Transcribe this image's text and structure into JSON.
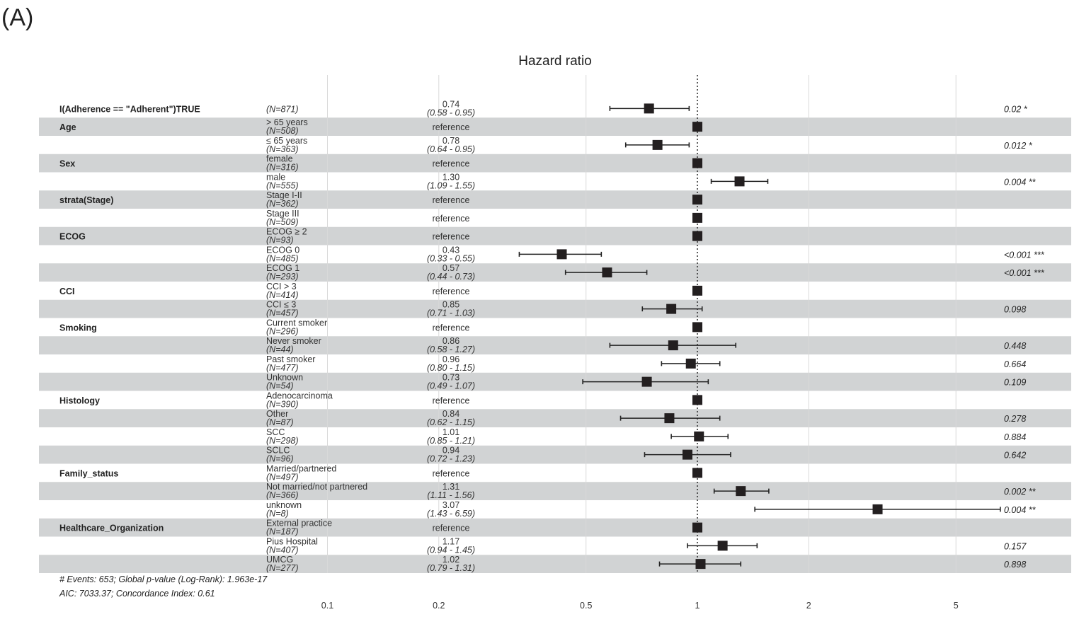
{
  "panel_label": "(A)",
  "footer": {
    "line1": "# Events: 653; Global p-value (Log-Rank): 1.963e-17",
    "line2": "AIC: 7033.37; Concordance Index: 0.61"
  },
  "chart_data": {
    "type": "forest",
    "title": "Hazard ratio",
    "x_scale": "log",
    "xlim": [
      0.1,
      6.6
    ],
    "x_ticks": [
      {
        "value": 0.1,
        "label": "0.1"
      },
      {
        "value": 0.2,
        "label": "0.2"
      },
      {
        "value": 0.5,
        "label": "0.5"
      },
      {
        "value": 1,
        "label": "1"
      },
      {
        "value": 2,
        "label": "2"
      },
      {
        "value": 5,
        "label": "5"
      }
    ],
    "reference_line": 1,
    "rows": [
      {
        "variable": "I(Adherence == \"Adherent\")TRUE",
        "level": "",
        "n": "(N=871)",
        "hr": 0.74,
        "lower": 0.58,
        "upper": 0.95,
        "hr_label": "0.74",
        "ci_label": "(0.58 - 0.95)",
        "p": "0.02 *"
      },
      {
        "variable": "Age",
        "level": "> 65 years",
        "n": "(N=508)",
        "hr": 1,
        "lower": null,
        "upper": null,
        "hr_label": "reference",
        "ci_label": "",
        "p": ""
      },
      {
        "variable": "",
        "level": "≤ 65 years",
        "n": "(N=363)",
        "hr": 0.78,
        "lower": 0.64,
        "upper": 0.95,
        "hr_label": "0.78",
        "ci_label": "(0.64 - 0.95)",
        "p": "0.012 *"
      },
      {
        "variable": "Sex",
        "level": "female",
        "n": "(N=316)",
        "hr": 1,
        "lower": null,
        "upper": null,
        "hr_label": "reference",
        "ci_label": "",
        "p": ""
      },
      {
        "variable": "",
        "level": "male",
        "n": "(N=555)",
        "hr": 1.3,
        "lower": 1.09,
        "upper": 1.55,
        "hr_label": "1.30",
        "ci_label": "(1.09 - 1.55)",
        "p": "0.004 **"
      },
      {
        "variable": "strata(Stage)",
        "level": "Stage I-II",
        "n": "(N=362)",
        "hr": 1,
        "lower": null,
        "upper": null,
        "hr_label": "reference",
        "ci_label": "",
        "p": ""
      },
      {
        "variable": "",
        "level": "Stage III",
        "n": "(N=509)",
        "hr": 1,
        "lower": null,
        "upper": null,
        "hr_label": "reference",
        "ci_label": "",
        "p": ""
      },
      {
        "variable": "ECOG",
        "level": "ECOG ≥ 2",
        "n": "(N=93)",
        "hr": 1,
        "lower": null,
        "upper": null,
        "hr_label": "reference",
        "ci_label": "",
        "p": ""
      },
      {
        "variable": "",
        "level": "ECOG 0",
        "n": "(N=485)",
        "hr": 0.43,
        "lower": 0.33,
        "upper": 0.55,
        "hr_label": "0.43",
        "ci_label": "(0.33 - 0.55)",
        "p": "<0.001 ***"
      },
      {
        "variable": "",
        "level": "ECOG 1",
        "n": "(N=293)",
        "hr": 0.57,
        "lower": 0.44,
        "upper": 0.73,
        "hr_label": "0.57",
        "ci_label": "(0.44 - 0.73)",
        "p": "<0.001 ***"
      },
      {
        "variable": "CCI",
        "level": "CCI > 3",
        "n": "(N=414)",
        "hr": 1,
        "lower": null,
        "upper": null,
        "hr_label": "reference",
        "ci_label": "",
        "p": ""
      },
      {
        "variable": "",
        "level": "CCI ≤ 3",
        "n": "(N=457)",
        "hr": 0.85,
        "lower": 0.71,
        "upper": 1.03,
        "hr_label": "0.85",
        "ci_label": "(0.71 - 1.03)",
        "p": "0.098"
      },
      {
        "variable": "Smoking",
        "level": "Current smoker",
        "n": "(N=296)",
        "hr": 1,
        "lower": null,
        "upper": null,
        "hr_label": "reference",
        "ci_label": "",
        "p": ""
      },
      {
        "variable": "",
        "level": "Never smoker",
        "n": "(N=44)",
        "hr": 0.86,
        "lower": 0.58,
        "upper": 1.27,
        "hr_label": "0.86",
        "ci_label": "(0.58 - 1.27)",
        "p": "0.448"
      },
      {
        "variable": "",
        "level": "Past smoker",
        "n": "(N=477)",
        "hr": 0.96,
        "lower": 0.8,
        "upper": 1.15,
        "hr_label": "0.96",
        "ci_label": "(0.80 - 1.15)",
        "p": "0.664"
      },
      {
        "variable": "",
        "level": "Unknown",
        "n": "(N=54)",
        "hr": 0.73,
        "lower": 0.49,
        "upper": 1.07,
        "hr_label": "0.73",
        "ci_label": "(0.49 - 1.07)",
        "p": "0.109"
      },
      {
        "variable": "Histology",
        "level": "Adenocarcinoma",
        "n": "(N=390)",
        "hr": 1,
        "lower": null,
        "upper": null,
        "hr_label": "reference",
        "ci_label": "",
        "p": ""
      },
      {
        "variable": "",
        "level": "Other",
        "n": "(N=87)",
        "hr": 0.84,
        "lower": 0.62,
        "upper": 1.15,
        "hr_label": "0.84",
        "ci_label": "(0.62 - 1.15)",
        "p": "0.278"
      },
      {
        "variable": "",
        "level": "SCC",
        "n": "(N=298)",
        "hr": 1.01,
        "lower": 0.85,
        "upper": 1.21,
        "hr_label": "1.01",
        "ci_label": "(0.85 - 1.21)",
        "p": "0.884"
      },
      {
        "variable": "",
        "level": "SCLC",
        "n": "(N=96)",
        "hr": 0.94,
        "lower": 0.72,
        "upper": 1.23,
        "hr_label": "0.94",
        "ci_label": "(0.72 - 1.23)",
        "p": "0.642"
      },
      {
        "variable": "Family_status",
        "level": "Married/partnered",
        "n": "(N=497)",
        "hr": 1,
        "lower": null,
        "upper": null,
        "hr_label": "reference",
        "ci_label": "",
        "p": ""
      },
      {
        "variable": "",
        "level": "Not married/not partnered",
        "n": "(N=366)",
        "hr": 1.31,
        "lower": 1.11,
        "upper": 1.56,
        "hr_label": "1.31",
        "ci_label": "(1.11 - 1.56)",
        "p": "0.002 **"
      },
      {
        "variable": "",
        "level": "unknown",
        "n": "(N=8)",
        "hr": 3.07,
        "lower": 1.43,
        "upper": 6.59,
        "hr_label": "3.07",
        "ci_label": "(1.43 - 6.59)",
        "p": "0.004 **"
      },
      {
        "variable": "Healthcare_Organization",
        "level": "External practice",
        "n": "(N=187)",
        "hr": 1,
        "lower": null,
        "upper": null,
        "hr_label": "reference",
        "ci_label": "",
        "p": ""
      },
      {
        "variable": "",
        "level": "Pius Hospital",
        "n": "(N=407)",
        "hr": 1.17,
        "lower": 0.94,
        "upper": 1.45,
        "hr_label": "1.17",
        "ci_label": "(0.94 - 1.45)",
        "p": "0.157"
      },
      {
        "variable": "",
        "level": "UMCG",
        "n": "(N=277)",
        "hr": 1.02,
        "lower": 0.79,
        "upper": 1.31,
        "hr_label": "1.02",
        "ci_label": "(0.79 - 1.31)",
        "p": "0.898"
      }
    ]
  }
}
